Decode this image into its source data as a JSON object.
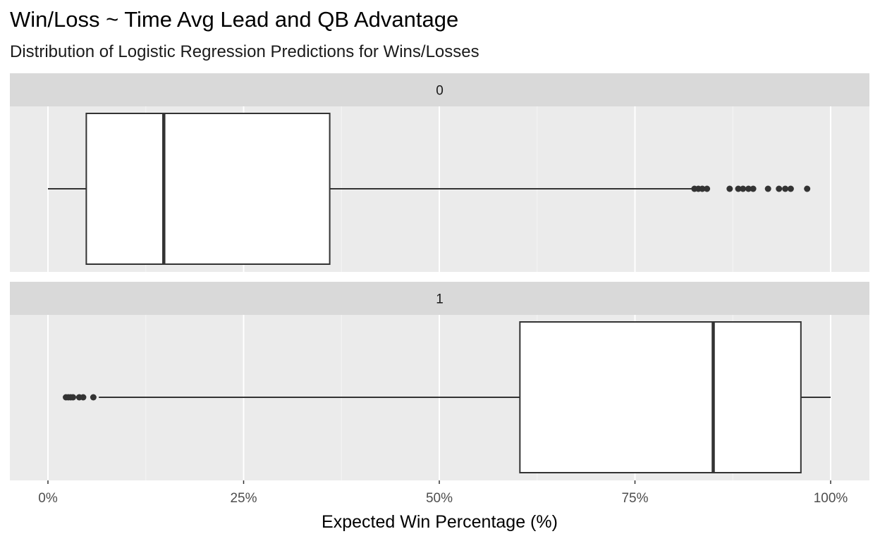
{
  "chart_data": {
    "type": "boxplot",
    "title": "Win/Loss ~ Time Avg Lead and QB Advantage",
    "subtitle": "Distribution of Logistic Regression Predictions for Wins/Losses",
    "xlabel": "Expected Win Percentage (%)",
    "ylabel": "",
    "xlim": [
      0,
      1
    ],
    "x_ticks": [
      0,
      0.25,
      0.5,
      0.75,
      1.0
    ],
    "x_tick_labels": [
      "0%",
      "25%",
      "50%",
      "75%",
      "100%"
    ],
    "facet_by": "Win/Loss",
    "grid": true,
    "panel_background": "#ebebeb",
    "strip_background": "#d9d9d9",
    "box_fill": "#ffffff",
    "box_line_color": "#333333",
    "facets": [
      {
        "label": "0",
        "whisker_low": 0.0,
        "q1": 0.049,
        "median": 0.148,
        "q3": 0.36,
        "whisker_high": 0.823,
        "outliers": [
          0.826,
          0.831,
          0.836,
          0.842,
          0.871,
          0.882,
          0.888,
          0.895,
          0.901,
          0.92,
          0.934,
          0.942,
          0.949,
          0.97
        ]
      },
      {
        "label": "1",
        "whisker_low": 0.065,
        "q1": 0.603,
        "median": 0.85,
        "q3": 0.962,
        "whisker_high": 1.0,
        "outliers": [
          0.023,
          0.026,
          0.029,
          0.032,
          0.04,
          0.045,
          0.058
        ]
      }
    ]
  }
}
